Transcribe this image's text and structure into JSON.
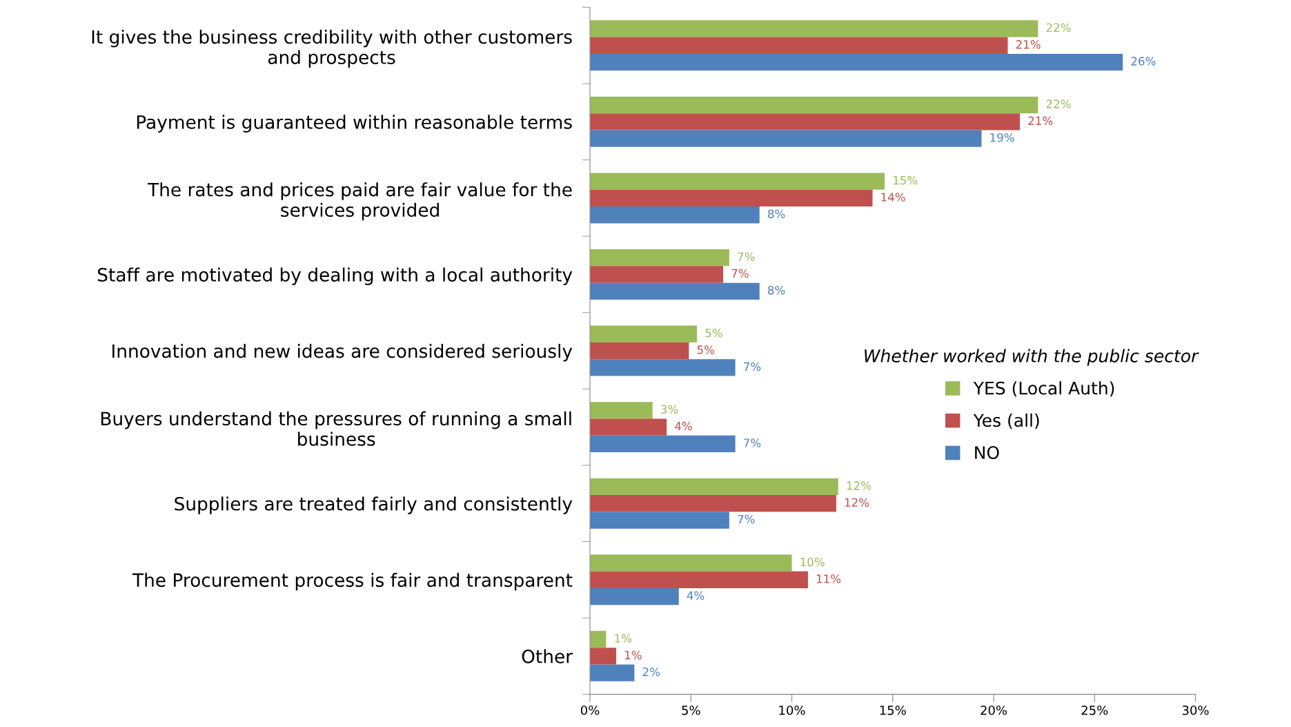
{
  "chart_data": {
    "type": "bar",
    "orientation": "horizontal",
    "categories": [
      "It gives the business credibility with other customers\nand prospects",
      "Payment is guaranteed within reasonable terms",
      "The rates and prices paid are fair value for the\nservices provided",
      "Staff are motivated by dealing with a local authority",
      "Innovation and new ideas are considered seriously",
      "Buyers understand the pressures of running a small\nbusiness",
      "Suppliers are treated fairly and consistently",
      "The Procurement process is fair and transparent",
      "Other"
    ],
    "series": [
      {
        "name": "YES (Local Auth)",
        "color": "#9bbb59",
        "values": [
          22.2,
          22.2,
          14.6,
          6.9,
          5.3,
          3.1,
          12.3,
          10.0,
          0.8
        ],
        "value_labels": [
          "22%",
          "22%",
          "15%",
          "7%",
          "5%",
          "3%",
          "12%",
          "10%",
          "1%"
        ]
      },
      {
        "name": "Yes (all)",
        "color": "#c0504d",
        "values": [
          20.7,
          21.3,
          14.0,
          6.6,
          4.9,
          3.8,
          12.2,
          10.8,
          1.3
        ],
        "value_labels": [
          "21%",
          "21%",
          "14%",
          "7%",
          "5%",
          "4%",
          "12%",
          "11%",
          "1%"
        ]
      },
      {
        "name": "NO",
        "color": "#4f81bd",
        "values": [
          26.4,
          19.4,
          8.4,
          8.4,
          7.2,
          7.2,
          6.9,
          4.4,
          2.2
        ],
        "value_labels": [
          "26%",
          "19%",
          "8%",
          "8%",
          "7%",
          "7%",
          "7%",
          "4%",
          "2%"
        ]
      }
    ],
    "legend_title": "Whether worked with the public sector",
    "legend": "right",
    "grid": false,
    "xlim": [
      0,
      30
    ],
    "xticks": [
      {
        "value": 0,
        "label": "0%"
      },
      {
        "value": 5,
        "label": "5%"
      },
      {
        "value": 10,
        "label": "10%"
      },
      {
        "value": 15,
        "label": "15%"
      },
      {
        "value": 20,
        "label": "20%"
      },
      {
        "value": 25,
        "label": "25%"
      },
      {
        "value": 30,
        "label": "30%"
      }
    ]
  }
}
